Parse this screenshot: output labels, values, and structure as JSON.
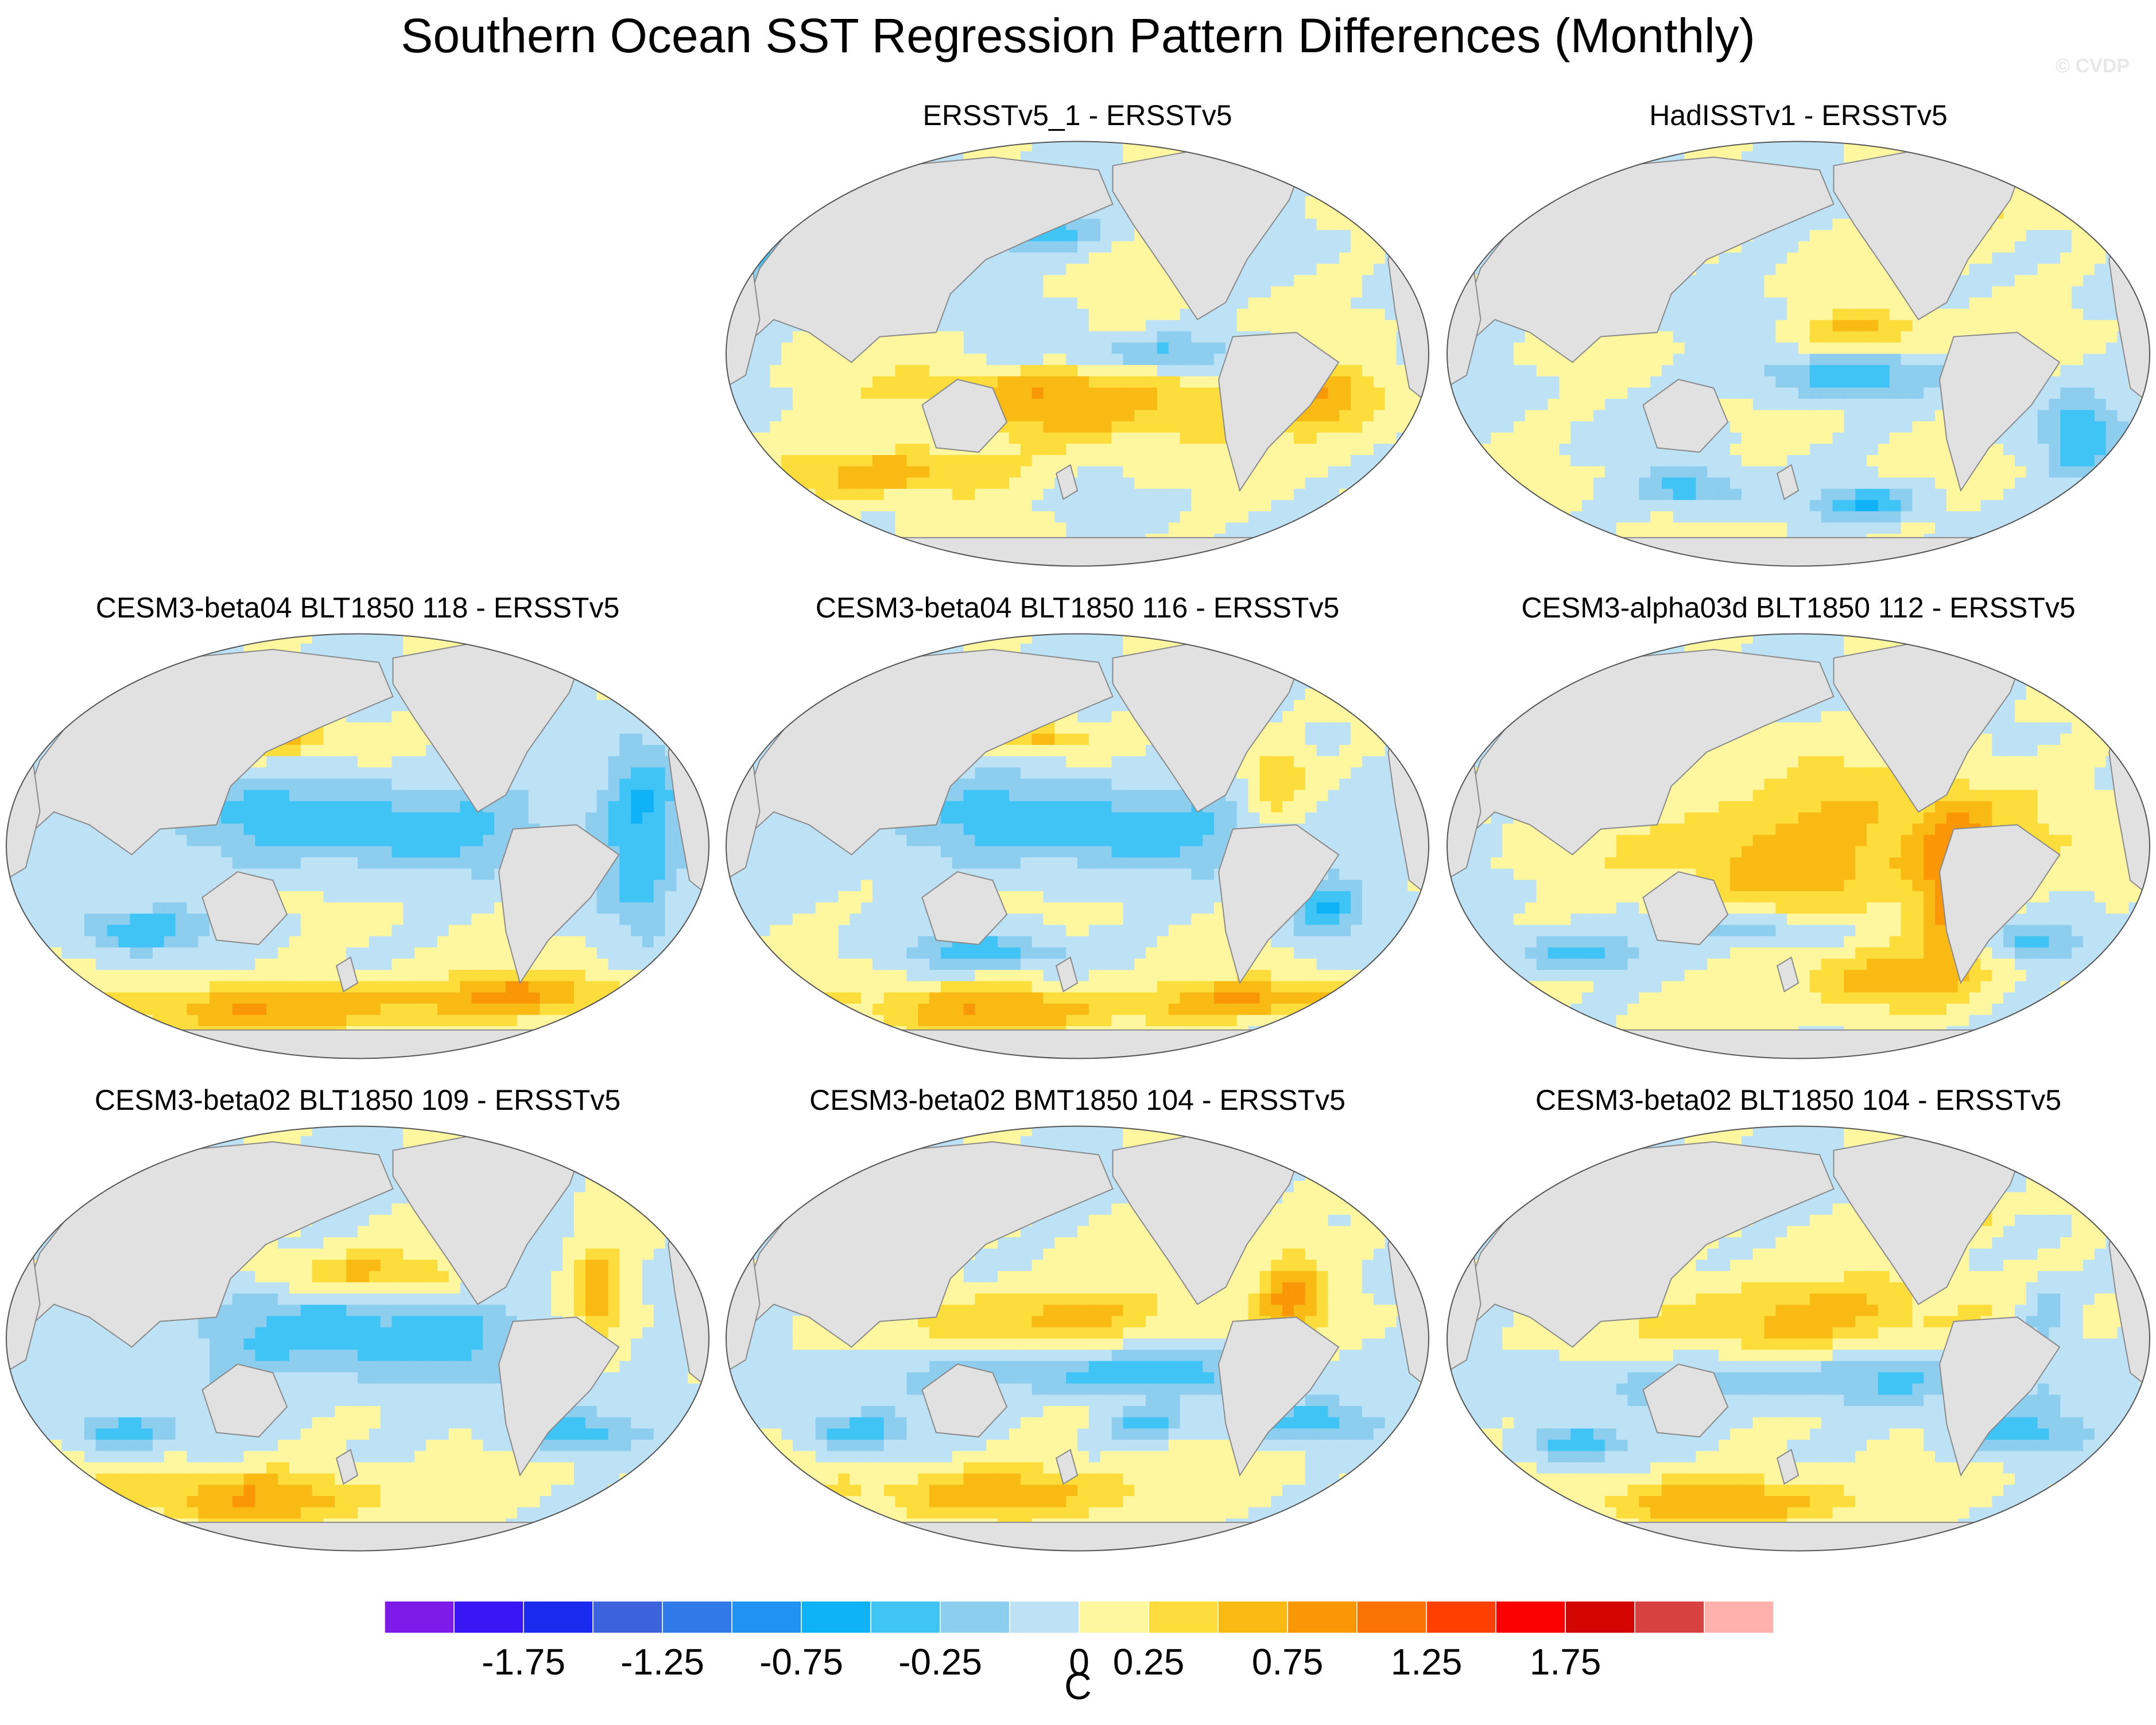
{
  "title": "Southern Ocean SST Regression Pattern Differences (Monthly)",
  "watermark": "© CVDP",
  "chart_data": {
    "type": "heatmap",
    "units": "C",
    "projection": "Robinson (global, Pacific-centered)",
    "colorbar": {
      "colors": [
        "#7f1be8",
        "#3b16f5",
        "#1a2bef",
        "#3c62dc",
        "#2f7ae8",
        "#2092f2",
        "#0fb2f6",
        "#40c4f5",
        "#8dcdee",
        "#bde2f6",
        "#fff7a0",
        "#fcdd3b",
        "#f9ba14",
        "#fa9707",
        "#fb7304",
        "#fd3f00",
        "#fb0001",
        "#d30501",
        "#d7413f",
        "#feb1ad"
      ],
      "tick_labels": [
        "-1.75",
        "-1.25",
        "-0.75",
        "-0.25",
        "0",
        "0.25",
        "0.75",
        "1.25",
        "1.75"
      ],
      "tick_boundaries": [
        2,
        4,
        6,
        8,
        10,
        11,
        13,
        15,
        17
      ]
    },
    "panels": [
      {
        "title": "ERSSTv5_1 - ERSSTv5",
        "row": 0,
        "col": 1,
        "features": [
          [
            -1,
            0.45,
            0.22,
            0.1,
            0.05
          ],
          [
            -1,
            0.1,
            0.3,
            0.1,
            0.06
          ],
          [
            1,
            0.5,
            0.6,
            0.3,
            0.12
          ],
          [
            1,
            0.25,
            0.78,
            0.15,
            0.06
          ],
          [
            -1,
            0.6,
            0.5,
            0.25,
            0.05
          ],
          [
            1,
            0.85,
            0.6,
            0.1,
            0.1
          ]
        ]
      },
      {
        "title": "HadISSTv1 - ERSSTv5",
        "row": 0,
        "col": 2,
        "features": [
          [
            1,
            0.75,
            0.15,
            0.05,
            0.1
          ],
          [
            1,
            0.6,
            0.45,
            0.1,
            0.05
          ],
          [
            -1,
            0.55,
            0.55,
            0.15,
            0.06
          ],
          [
            -1,
            0.35,
            0.82,
            0.08,
            0.05
          ],
          [
            -1,
            0.6,
            0.85,
            0.08,
            0.04
          ],
          [
            -1,
            0.9,
            0.7,
            0.06,
            0.1
          ]
        ]
      },
      {
        "title": "CESM3-beta04 BLT1850 118 - ERSSTv5",
        "row": 1,
        "col": 0,
        "features": [
          [
            -1,
            0.5,
            0.45,
            0.35,
            0.12
          ],
          [
            1,
            0.4,
            0.25,
            0.08,
            0.05
          ],
          [
            -1,
            0.18,
            0.7,
            0.1,
            0.06
          ],
          [
            1,
            0.38,
            0.88,
            0.25,
            0.07
          ],
          [
            1,
            0.74,
            0.85,
            0.2,
            0.06
          ],
          [
            -1,
            0.9,
            0.45,
            0.06,
            0.25
          ],
          [
            1,
            0.72,
            0.12,
            0.03,
            0.04
          ]
        ]
      },
      {
        "title": "CESM3-beta04 BLT1850 116 - ERSSTv5",
        "row": 1,
        "col": 1,
        "features": [
          [
            -1,
            0.5,
            0.45,
            0.35,
            0.12
          ],
          [
            1,
            0.45,
            0.25,
            0.07,
            0.04
          ],
          [
            -1,
            0.38,
            0.75,
            0.12,
            0.05
          ],
          [
            1,
            0.4,
            0.88,
            0.25,
            0.07
          ],
          [
            1,
            0.78,
            0.86,
            0.18,
            0.05
          ],
          [
            1,
            0.78,
            0.35,
            0.05,
            0.1
          ],
          [
            -1,
            0.85,
            0.65,
            0.05,
            0.08
          ]
        ]
      },
      {
        "title": "CESM3-alpha03d BLT1850 112 - ERSSTv5",
        "row": 1,
        "col": 2,
        "features": [
          [
            1,
            0.55,
            0.5,
            0.3,
            0.18
          ],
          [
            1,
            0.72,
            0.6,
            0.05,
            0.2
          ],
          [
            -1,
            0.18,
            0.75,
            0.1,
            0.05
          ],
          [
            -1,
            0.82,
            0.72,
            0.08,
            0.05
          ],
          [
            1,
            0.6,
            0.82,
            0.12,
            0.08
          ],
          [
            -1,
            0.32,
            0.2,
            0.06,
            0.04
          ],
          [
            -1,
            0.45,
            0.7,
            0.12,
            0.04
          ]
        ]
      },
      {
        "title": "CESM3-beta02 BLT1850 109 - ERSSTv5",
        "row": 2,
        "col": 0,
        "features": [
          [
            -1,
            0.5,
            0.5,
            0.3,
            0.12
          ],
          [
            1,
            0.5,
            0.35,
            0.15,
            0.05
          ],
          [
            -1,
            0.16,
            0.72,
            0.08,
            0.05
          ],
          [
            1,
            0.36,
            0.87,
            0.25,
            0.07
          ],
          [
            -1,
            0.8,
            0.72,
            0.1,
            0.05
          ],
          [
            1,
            0.84,
            0.4,
            0.04,
            0.15
          ]
        ]
      },
      {
        "title": "CESM3-beta02 BMT1850 104 - ERSSTv5",
        "row": 2,
        "col": 1,
        "features": [
          [
            1,
            0.45,
            0.45,
            0.2,
            0.08
          ],
          [
            -1,
            0.5,
            0.58,
            0.3,
            0.06
          ],
          [
            -1,
            0.18,
            0.72,
            0.08,
            0.05
          ],
          [
            1,
            0.42,
            0.86,
            0.25,
            0.07
          ],
          [
            -1,
            0.82,
            0.7,
            0.1,
            0.05
          ],
          [
            1,
            0.8,
            0.4,
            0.05,
            0.15
          ],
          [
            -1,
            0.6,
            0.7,
            0.06,
            0.04
          ]
        ]
      },
      {
        "title": "CESM3-beta02 BLT1850 104 - ERSSTv5",
        "row": 2,
        "col": 2,
        "features": [
          [
            1,
            0.5,
            0.45,
            0.25,
            0.1
          ],
          [
            -1,
            0.5,
            0.6,
            0.3,
            0.06
          ],
          [
            -1,
            0.18,
            0.75,
            0.08,
            0.05
          ],
          [
            1,
            0.42,
            0.88,
            0.25,
            0.07
          ],
          [
            -1,
            0.8,
            0.72,
            0.1,
            0.06
          ],
          [
            1,
            0.75,
            0.2,
            0.04,
            0.06
          ],
          [
            -1,
            0.85,
            0.45,
            0.04,
            0.08
          ]
        ]
      }
    ]
  }
}
